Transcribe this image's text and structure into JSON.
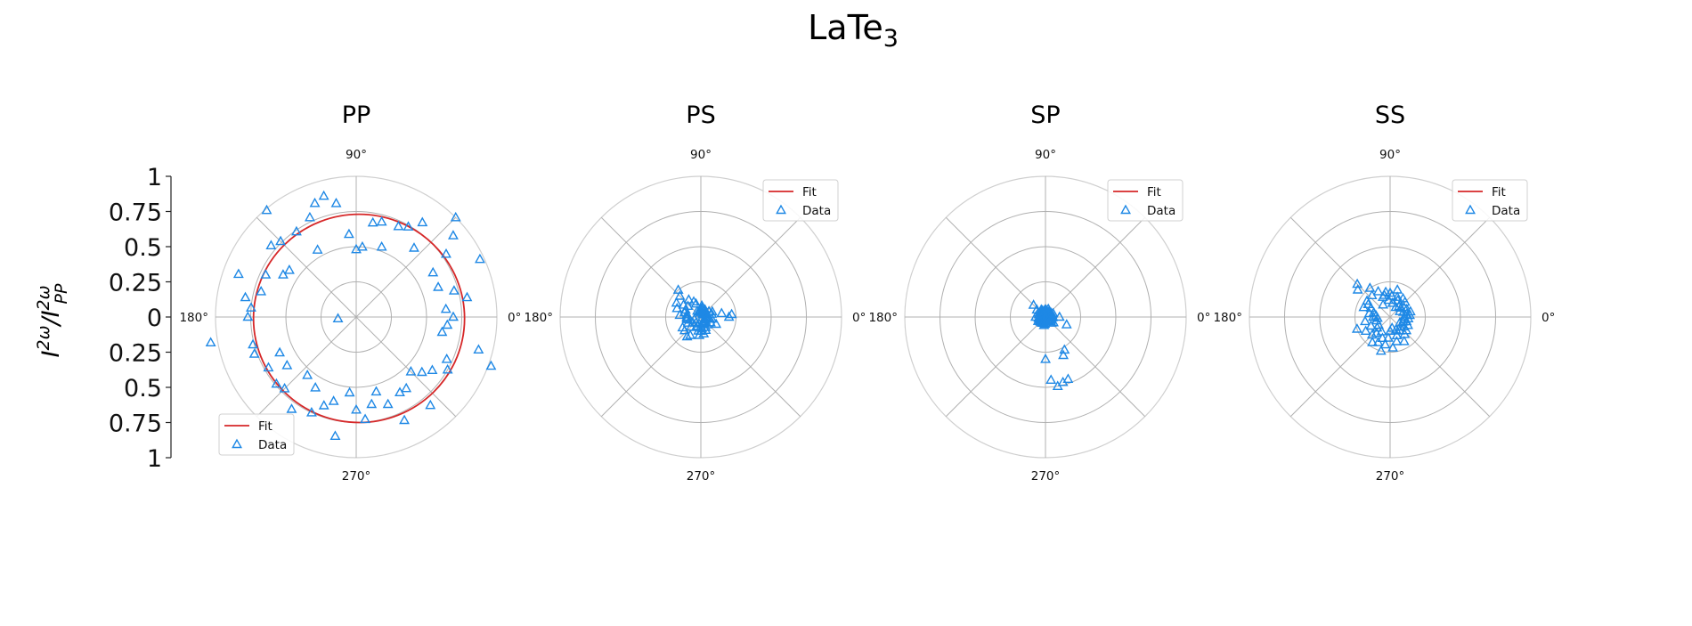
{
  "figure": {
    "title_main": "LaTe",
    "title_sub": "3",
    "ylabel_base": "I",
    "ylabel_sup1": "2ω",
    "ylabel_slash": "/I",
    "ylabel_sup2": "2ω",
    "ylabel_sub2": "PP"
  },
  "colors": {
    "fit": "#d62728",
    "data": "#1e88e5",
    "grid": "#b0b0b0",
    "spine": "#cfcfcf"
  },
  "chart_data": [
    {
      "type": "scatter",
      "projection": "polar",
      "title": "PP",
      "r_max": 1.0,
      "r_grid": [
        0.25,
        0.5,
        0.75,
        1.0
      ],
      "theta_ticks": [
        "0°",
        "90°",
        "180°",
        "270°"
      ],
      "theta_label_slots": [
        0,
        90,
        180,
        270
      ],
      "y_axis_ticks": [
        "1",
        "0.75",
        "0.5",
        "0.25",
        "0",
        "0.25",
        "0.5",
        "0.75",
        "1"
      ],
      "legend": {
        "position": "lower-left",
        "entries": [
          "Fit",
          "Data"
        ]
      },
      "fit": {
        "type": "ellipse",
        "a": 0.75,
        "b": 0.74,
        "center": [
          0.02,
          -0.01
        ]
      },
      "series": [
        {
          "name": "Data",
          "theta_deg": [
            0,
            5,
            10,
            15,
            20,
            25,
            30,
            35,
            40,
            45,
            50,
            55,
            60,
            65,
            70,
            75,
            80,
            85,
            90,
            95,
            100,
            105,
            110,
            115,
            120,
            125,
            130,
            135,
            140,
            145,
            150,
            155,
            160,
            165,
            170,
            175,
            180,
            185,
            190,
            195,
            200,
            205,
            210,
            215,
            220,
            225,
            230,
            235,
            240,
            245,
            250,
            255,
            260,
            265,
            270,
            275,
            280,
            285,
            290,
            295,
            300,
            305,
            310,
            315,
            320,
            325,
            330,
            335,
            340,
            345,
            350,
            355
          ],
          "r": [
            0.69,
            0.64,
            0.8,
            0.72,
            0.62,
            0.97,
            0.63,
            0.78,
            0.9,
            1.0,
            0.64,
            0.82,
            0.74,
            0.71,
            0.53,
            0.7,
            0.68,
            0.5,
            0.48,
            0.59,
            0.82,
            0.89,
            0.86,
            0.78,
            0.55,
            0.74,
            0.99,
            0.76,
            0.79,
            0.58,
            0.6,
            0.71,
            0.89,
            0.7,
            0.8,
            0.75,
            0.77,
            0.13,
            1.05,
            0.76,
            0.77,
            0.6,
            0.72,
            0.6,
            0.74,
            0.72,
            0.54,
            0.8,
            0.58,
            0.75,
            0.67,
            0.62,
            0.86,
            0.54,
            0.66,
            0.73,
            0.63,
            0.55,
            0.66,
            0.81,
            0.62,
            0.62,
            0.82,
            0.55,
            0.61,
            0.66,
            0.75,
            0.71,
            1.02,
            0.9,
            0.62,
            0.65
          ]
        }
      ]
    },
    {
      "type": "scatter",
      "projection": "polar",
      "title": "PS",
      "r_max": 1.0,
      "r_grid": [
        0.25,
        0.5,
        0.75,
        1.0
      ],
      "theta_ticks": [
        "0°",
        "90°",
        "180°",
        "270°"
      ],
      "theta_label_slots": [
        0,
        90,
        180,
        270
      ],
      "legend": {
        "position": "top-right",
        "entries": [
          "Fit",
          "Data"
        ]
      },
      "fit": {
        "type": "none"
      },
      "series": [
        {
          "name": "Data",
          "theta_deg": [
            0,
            5,
            10,
            15,
            20,
            25,
            30,
            35,
            40,
            45,
            50,
            55,
            60,
            65,
            70,
            75,
            80,
            85,
            90,
            95,
            100,
            105,
            110,
            115,
            120,
            125,
            130,
            135,
            140,
            145,
            150,
            155,
            160,
            165,
            170,
            175,
            180,
            185,
            190,
            195,
            200,
            205,
            210,
            215,
            220,
            225,
            230,
            235,
            240,
            245,
            250,
            255,
            260,
            265,
            270,
            275,
            280,
            285,
            290,
            295,
            300,
            305,
            310,
            315,
            320,
            325,
            330,
            335,
            340,
            345,
            350,
            355
          ],
          "r": [
            0.2,
            0.22,
            0.15,
            0.08,
            0.05,
            0.09,
            0.04,
            0.07,
            0.04,
            0.05,
            0.03,
            0.02,
            0.06,
            0.05,
            0.04,
            0.06,
            0.07,
            0.08,
            0.06,
            0.03,
            0.05,
            0.04,
            0.1,
            0.12,
            0.05,
            0.15,
            0.25,
            0.21,
            0.12,
            0.15,
            0.2,
            0.12,
            0.18,
            0.12,
            0.1,
            0.15,
            0.1,
            0.1,
            0.1,
            0.08,
            0.05,
            0.1,
            0.15,
            0.07,
            0.15,
            0.1,
            0.05,
            0.17,
            0.15,
            0.08,
            0.07,
            0.05,
            0.1,
            0.13,
            0.1,
            0.08,
            0.12,
            0.05,
            0.1,
            0.08,
            0.05,
            0.04,
            0.07,
            0.05,
            0.03,
            0.04,
            0.08,
            0.12,
            0.04,
            0.05,
            0.08,
            0.06
          ]
        }
      ]
    },
    {
      "type": "scatter",
      "projection": "polar",
      "title": "SP",
      "r_max": 1.0,
      "r_grid": [
        0.25,
        0.5,
        0.75,
        1.0
      ],
      "theta_ticks": [
        "0°",
        "90°",
        "180°",
        "270°"
      ],
      "theta_label_slots": [
        0,
        90,
        180,
        270
      ],
      "legend": {
        "position": "top-right",
        "entries": [
          "Fit",
          "Data"
        ]
      },
      "fit": {
        "type": "none"
      },
      "series": [
        {
          "name": "Data",
          "theta_deg": [
            0,
            5,
            10,
            15,
            20,
            25,
            30,
            35,
            40,
            45,
            50,
            55,
            60,
            65,
            70,
            75,
            80,
            85,
            90,
            95,
            100,
            105,
            110,
            115,
            120,
            125,
            130,
            135,
            140,
            145,
            150,
            155,
            160,
            165,
            170,
            175,
            180,
            185,
            190,
            195,
            200,
            205,
            210,
            215,
            220,
            225,
            230,
            235,
            240,
            245,
            250,
            255,
            260,
            265,
            270,
            275,
            280,
            285,
            290,
            295,
            300,
            305,
            310,
            315,
            320,
            325,
            330,
            335,
            340,
            345,
            350,
            355
          ],
          "r": [
            0.1,
            0.03,
            0.05,
            0.04,
            0.02,
            0.06,
            0.03,
            0.05,
            0.04,
            0.02,
            0.03,
            0.05,
            0.04,
            0.03,
            0.06,
            0.04,
            0.02,
            0.05,
            0.03,
            0.05,
            0.04,
            0.03,
            0.02,
            0.05,
            0.06,
            0.04,
            0.05,
            0.12,
            0.08,
            0.04,
            0.06,
            0.03,
            0.05,
            0.04,
            0.03,
            0.02,
            0.07,
            0.03,
            0.05,
            0.04,
            0.03,
            0.04,
            0.06,
            0.05,
            0.04,
            0.05,
            0.04,
            0.03,
            0.05,
            0.02,
            0.04,
            0.03,
            0.06,
            0.05,
            0.3,
            0.45,
            0.5,
            0.48,
            0.47,
            0.3,
            0.27,
            0.03,
            0.04,
            0.06,
            0.05,
            0.07,
            0.04,
            0.05,
            0.16,
            0.04,
            0.03,
            0.05
          ]
        }
      ]
    },
    {
      "type": "scatter",
      "projection": "polar",
      "title": "SS",
      "r_max": 1.0,
      "r_grid": [
        0.25,
        0.5,
        0.75,
        1.0
      ],
      "theta_ticks": [
        "0°",
        "90°",
        "180°",
        "270°"
      ],
      "theta_label_slots": [
        0,
        90,
        180,
        270
      ],
      "legend": {
        "position": "top-right",
        "entries": [
          "Fit",
          "Data"
        ]
      },
      "fit": {
        "type": "none"
      },
      "series": [
        {
          "name": "Data",
          "theta_deg": [
            0,
            5,
            10,
            15,
            20,
            25,
            30,
            35,
            40,
            45,
            50,
            55,
            60,
            65,
            70,
            75,
            80,
            85,
            90,
            95,
            100,
            105,
            110,
            115,
            120,
            125,
            130,
            135,
            140,
            145,
            150,
            155,
            160,
            165,
            170,
            175,
            180,
            185,
            190,
            195,
            200,
            205,
            210,
            215,
            220,
            225,
            230,
            235,
            240,
            245,
            250,
            255,
            260,
            265,
            270,
            275,
            280,
            285,
            290,
            295,
            300,
            305,
            310,
            315,
            320,
            325,
            330,
            335,
            340,
            345,
            350,
            355
          ],
          "r": [
            0.1,
            0.14,
            0.12,
            0.15,
            0.1,
            0.13,
            0.08,
            0.12,
            0.1,
            0.15,
            0.1,
            0.16,
            0.08,
            0.13,
            0.15,
            0.2,
            0.1,
            0.15,
            0.17,
            0.12,
            0.18,
            0.16,
            0.15,
            0.2,
            0.1,
            0.25,
            0.2,
            0.33,
            0.3,
            0.2,
            0.18,
            0.15,
            0.2,
            0.12,
            0.15,
            0.1,
            0.12,
            0.09,
            0.18,
            0.1,
            0.25,
            0.15,
            0.2,
            0.1,
            0.12,
            0.18,
            0.15,
            0.22,
            0.12,
            0.2,
            0.16,
            0.25,
            0.2,
            0.15,
            0.1,
            0.22,
            0.08,
            0.18,
            0.14,
            0.1,
            0.2,
            0.12,
            0.16,
            0.1,
            0.15,
            0.12,
            0.08,
            0.14,
            0.1,
            0.12,
            0.1,
            0.13
          ]
        }
      ]
    }
  ]
}
